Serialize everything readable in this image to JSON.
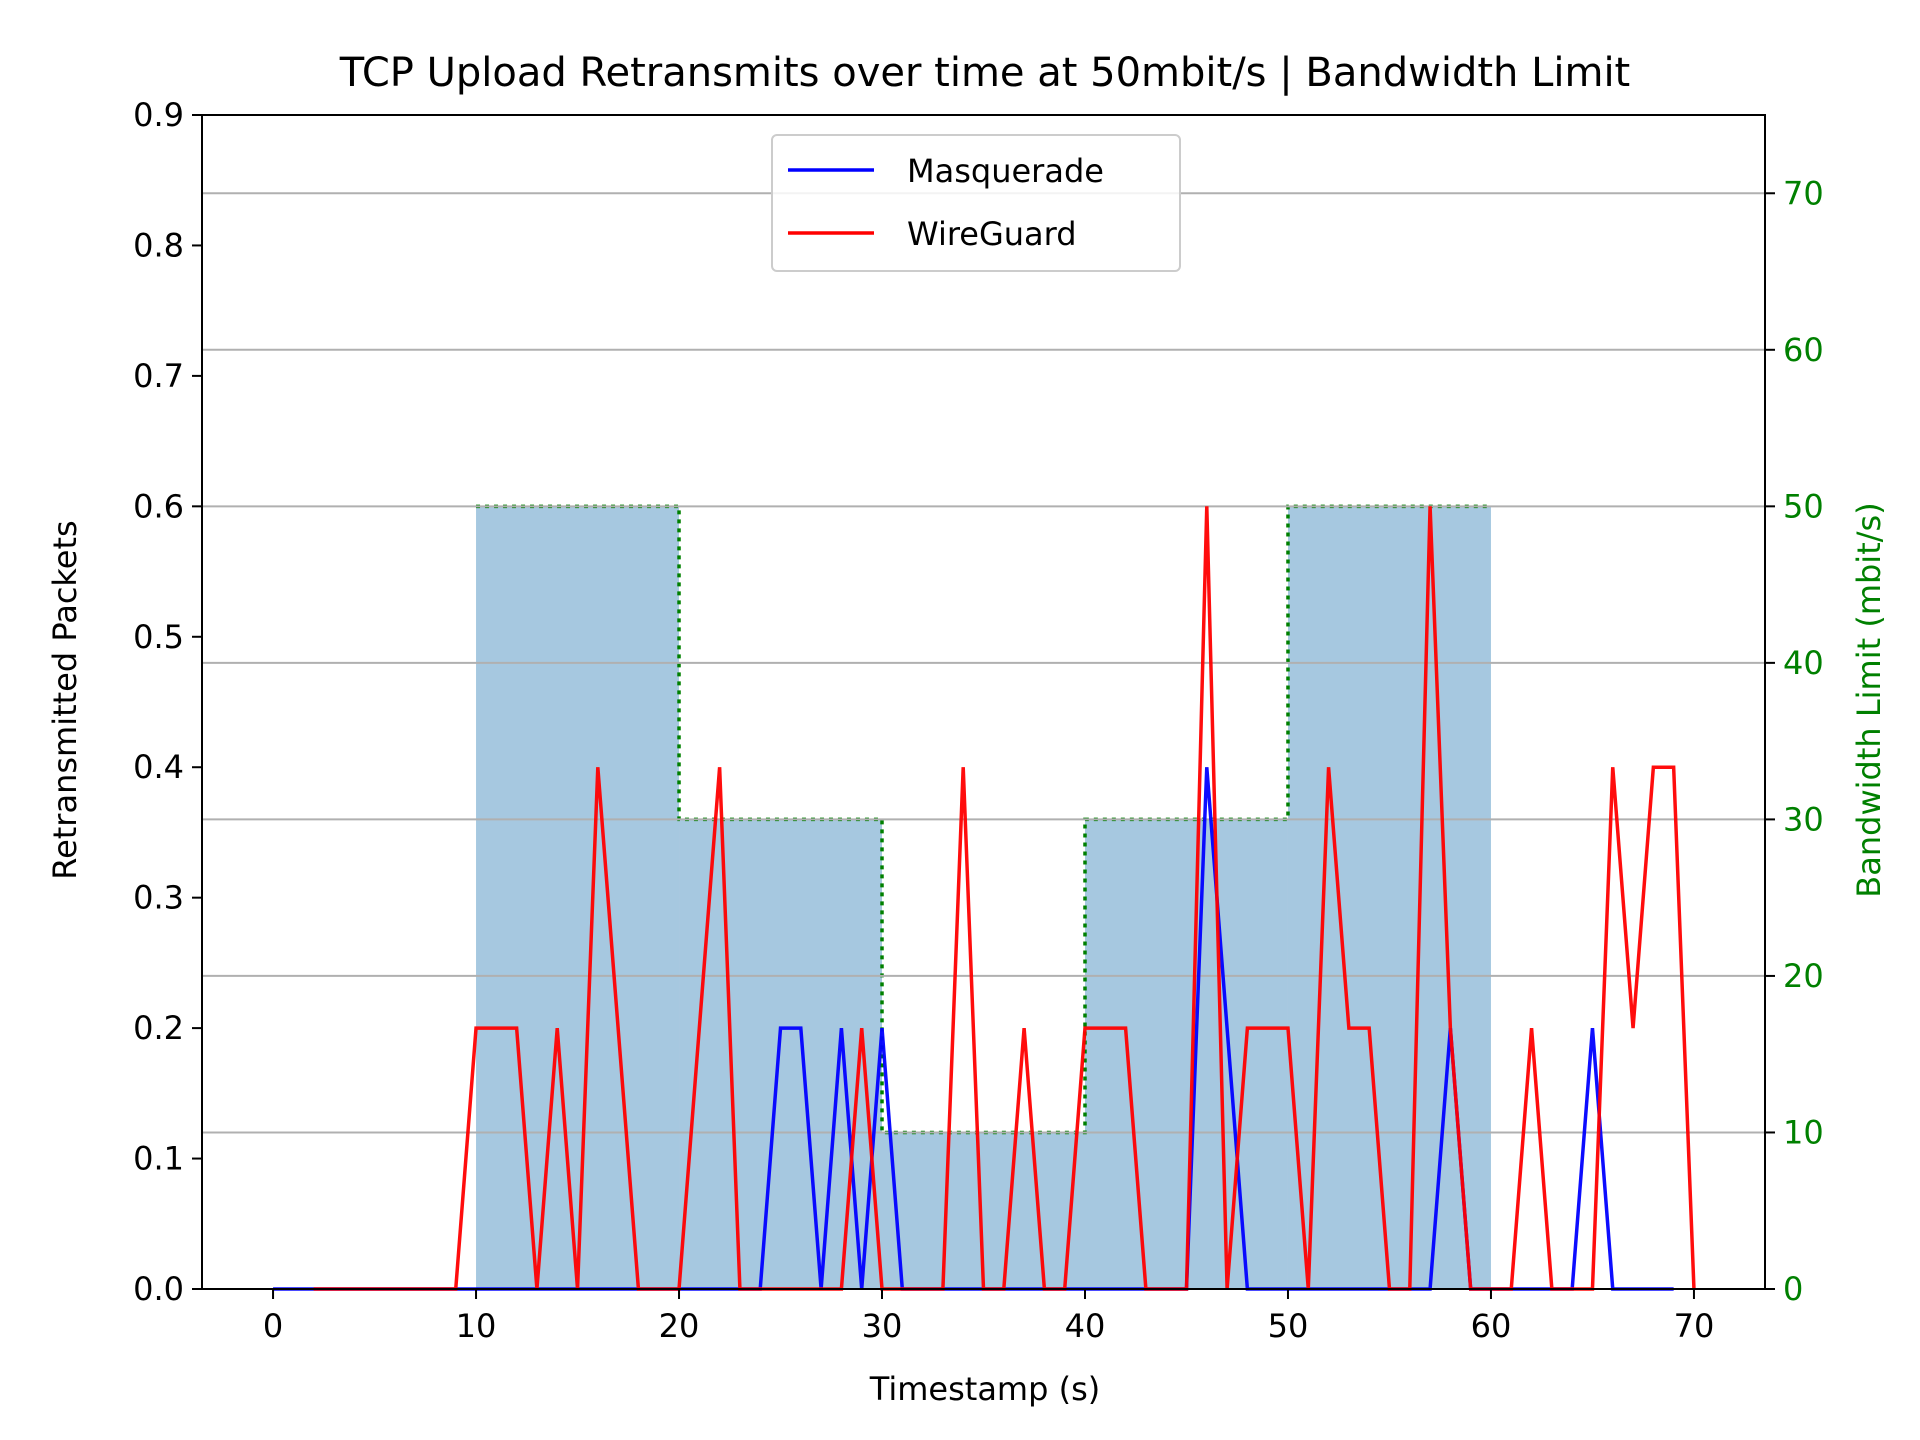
{
  "chart_data": {
    "type": "line",
    "title": "TCP Upload Retransmits over time at 50mbit/s | Bandwidth Limit",
    "xlabel": "Timestamp (s)",
    "ylabel": "Retransmitted Packets",
    "y2label": "Bandwidth Limit (mbit/s)",
    "xlim": [
      -3.5,
      73.5
    ],
    "ylim": [
      0,
      0.9
    ],
    "y2lim": [
      0,
      75
    ],
    "xticks": [
      "0",
      "10",
      "20",
      "30",
      "40",
      "50",
      "60",
      "70"
    ],
    "yticks": [
      "0.0",
      "0.1",
      "0.2",
      "0.3",
      "0.4",
      "0.5",
      "0.6",
      "0.7",
      "0.8",
      "0.9"
    ],
    "y2ticks": [
      "0",
      "10",
      "20",
      "30",
      "40",
      "50",
      "60",
      "70"
    ],
    "grid": "horizontal, right-axis ticks",
    "legend_position": "upper center",
    "colors": {
      "masquerade": "#0000ff",
      "wireguard": "#ff0000",
      "bandwidth_fill": "#a6c8e0",
      "bandwidth_line": "#008000",
      "y2_axis": "#008000",
      "grid": "#b0b0b0"
    },
    "series": [
      {
        "name": "Masquerade",
        "x": [
          0,
          1,
          2,
          3,
          4,
          5,
          6,
          7,
          8,
          9,
          10,
          11,
          12,
          13,
          14,
          15,
          16,
          17,
          18,
          19,
          20,
          21,
          22,
          23,
          24,
          25,
          26,
          27,
          28,
          29,
          30,
          31,
          32,
          33,
          34,
          35,
          36,
          37,
          38,
          39,
          40,
          41,
          42,
          43,
          44,
          45,
          46,
          47,
          48,
          49,
          50,
          51,
          52,
          53,
          54,
          55,
          56,
          57,
          58,
          59,
          60,
          61,
          62,
          63,
          64,
          65,
          66,
          67,
          68,
          69
        ],
        "values": [
          0,
          0,
          0,
          0,
          0,
          0,
          0,
          0,
          0,
          0,
          0,
          0,
          0,
          0,
          0,
          0,
          0,
          0,
          0,
          0,
          0,
          0,
          0,
          0,
          0,
          0.2,
          0.2,
          0,
          0.2,
          0,
          0.2,
          0,
          0,
          0,
          0,
          0,
          0,
          0,
          0,
          0,
          0,
          0,
          0,
          0,
          0,
          0,
          0.4,
          0.2,
          0,
          0,
          0,
          0,
          0,
          0,
          0,
          0,
          0,
          0,
          0.2,
          0,
          0,
          0,
          0,
          0,
          0,
          0.2,
          0,
          0,
          0,
          0
        ]
      },
      {
        "name": "WireGuard",
        "x": [
          2,
          3,
          4,
          5,
          6,
          7,
          8,
          9,
          10,
          11,
          12,
          13,
          14,
          15,
          16,
          17,
          18,
          19,
          20,
          21,
          22,
          23,
          24,
          25,
          26,
          27,
          28,
          29,
          30,
          31,
          32,
          33,
          34,
          35,
          36,
          37,
          38,
          39,
          40,
          41,
          42,
          43,
          44,
          45,
          46,
          47,
          48,
          49,
          50,
          51,
          52,
          53,
          54,
          55,
          56,
          57,
          58,
          59,
          60,
          61,
          62,
          63,
          64,
          65,
          66,
          67,
          68,
          69,
          70
        ],
        "values": [
          0,
          0,
          0,
          0,
          0,
          0,
          0,
          0,
          0.2,
          0.2,
          0.2,
          0,
          0.2,
          0,
          0.4,
          0.2,
          0,
          0,
          0,
          0.2,
          0.4,
          0,
          0,
          0,
          0,
          0,
          0,
          0.2,
          0,
          0,
          0,
          0,
          0.4,
          0,
          0,
          0.2,
          0,
          0,
          0.2,
          0.2,
          0.2,
          0,
          0,
          0,
          0.6,
          0,
          0.2,
          0.2,
          0.2,
          0,
          0.4,
          0.2,
          0.2,
          0,
          0,
          0.6,
          0.2,
          0,
          0,
          0,
          0.2,
          0,
          0,
          0,
          0.4,
          0.2,
          0.4,
          0.4,
          0
        ]
      }
    ],
    "bandwidth_limit": {
      "steps": [
        {
          "x_start": 10,
          "x_end": 20,
          "value": 50
        },
        {
          "x_start": 20,
          "x_end": 30,
          "value": 30
        },
        {
          "x_start": 30,
          "x_end": 40,
          "value": 10
        },
        {
          "x_start": 40,
          "x_end": 50,
          "value": 30
        },
        {
          "x_start": 50,
          "x_end": 60,
          "value": 50
        }
      ]
    }
  }
}
